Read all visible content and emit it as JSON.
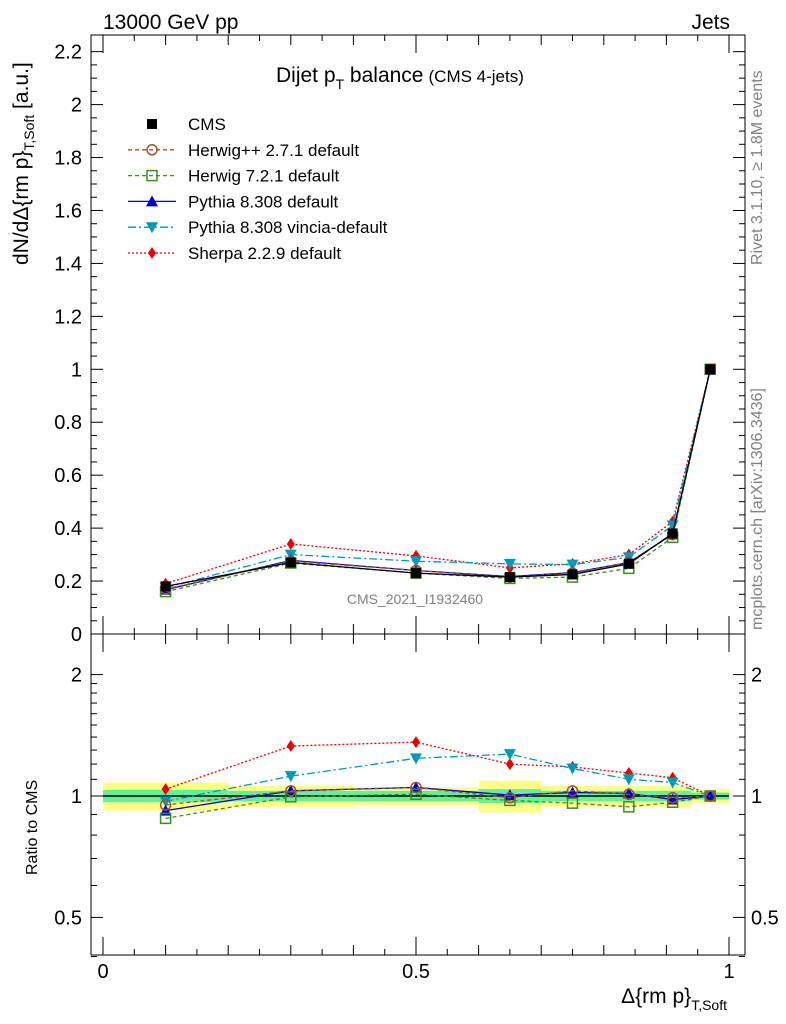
{
  "header": {
    "energy": "13000 GeV pp",
    "process": "Jets"
  },
  "side": {
    "rivet": "Rivet 3.1.10, ≥ 1.8M events",
    "mcplots": "mcplots.cern.ch [arXiv:1306.3436]"
  },
  "colors": {
    "CMS": "#000000",
    "Herwig++ 2.7.1 default": "#a0522d",
    "Herwig 7.2.1 default": "#3a8f1a",
    "Pythia 8.308 default": "#0000cc",
    "Pythia 8.308 vincia-default": "#0099bb",
    "Sherpa 2.2.9 default": "#ee0000",
    "band_inner": "#66ee99",
    "band_outer": "#ffff88"
  },
  "chart_data": [
    {
      "type": "line",
      "title": "Dijet p_T balance",
      "title_main": "Dijet p",
      "title_sub": "T",
      "title_rest": " balance",
      "title_note": "(CMS 4-jets)",
      "ylabel": "dN/dΔ{rm p}",
      "ylabel_sub": "T,Soft",
      "ylabel_unit": " [a.u.]",
      "watermark": "CMS_2021_I1932460",
      "xlim": [
        0,
        1
      ],
      "ylim": [
        0,
        2.25
      ],
      "yticks": [
        0,
        0.2,
        0.4,
        0.6,
        0.8,
        1,
        1.2,
        1.4,
        1.6,
        1.8,
        2,
        2.2
      ],
      "ytick_labels": [
        "0",
        "0.2",
        "0.4",
        "0.6",
        "0.8",
        "1",
        "1.2",
        "1.4",
        "1.6",
        "1.8",
        "2",
        "2.2"
      ],
      "legend_position": "top-left",
      "x": [
        0.1,
        0.3,
        0.5,
        0.65,
        0.75,
        0.84,
        0.91,
        0.97
      ],
      "series": [
        {
          "name": "CMS",
          "marker": "square",
          "dash": "none",
          "values": [
            0.18,
            0.27,
            0.23,
            0.215,
            0.225,
            0.265,
            0.38,
            1.0
          ]
        },
        {
          "name": "Herwig++ 2.7.1 default",
          "marker": "circle-open",
          "dash": "4,3",
          "values": [
            0.17,
            0.275,
            0.24,
            0.215,
            0.23,
            0.27,
            0.375,
            1.0
          ]
        },
        {
          "name": "Herwig 7.2.1 default",
          "marker": "square-open",
          "dash": "4,3",
          "values": [
            0.16,
            0.268,
            0.23,
            0.21,
            0.215,
            0.248,
            0.365,
            1.0
          ]
        },
        {
          "name": "Pythia 8.308 default",
          "marker": "triangle-up",
          "dash": "none",
          "values": [
            0.167,
            0.278,
            0.24,
            0.217,
            0.232,
            0.27,
            0.377,
            1.0
          ]
        },
        {
          "name": "Pythia 8.308 vincia-default",
          "marker": "triangle-down",
          "dash": "8,3,2,3",
          "values": [
            0.175,
            0.3,
            0.275,
            0.265,
            0.262,
            0.29,
            0.41,
            1.0
          ]
        },
        {
          "name": "Sherpa 2.2.9 default",
          "marker": "diamond",
          "dash": "2,2",
          "values": [
            0.19,
            0.34,
            0.295,
            0.25,
            0.265,
            0.3,
            0.425,
            1.0
          ]
        }
      ]
    },
    {
      "type": "line",
      "ylabel": "Ratio to CMS",
      "xlabel": "Δ{rm p}",
      "xlabel_sub": "T,Soft",
      "xlim": [
        0,
        1
      ],
      "ylim": [
        0.35,
        2.3
      ],
      "log_y": true,
      "yticks": [
        0.5,
        1,
        2
      ],
      "ytick_labels": [
        "0.5",
        "1",
        "2"
      ],
      "xticks": [
        0,
        0.5,
        1
      ],
      "xtick_labels": [
        "0",
        "0.5",
        "1"
      ],
      "x": [
        0.1,
        0.3,
        0.5,
        0.65,
        0.75,
        0.84,
        0.91,
        0.97
      ],
      "band_edges": [
        0,
        0.2,
        0.4,
        0.6,
        0.7,
        0.8,
        0.88,
        0.94,
        1.0
      ],
      "band_inner": [
        0.035,
        0.03,
        0.03,
        0.04,
        0.03,
        0.03,
        0.03,
        0.02
      ],
      "band_outer": [
        0.08,
        0.06,
        0.05,
        0.09,
        0.06,
        0.06,
        0.06,
        0.04
      ],
      "series": [
        {
          "name": "Herwig++ 2.7.1 default",
          "marker": "circle-open",
          "dash": "4,3",
          "values": [
            0.95,
            1.03,
            1.05,
            0.99,
            1.03,
            1.01,
            0.99,
            1.0
          ]
        },
        {
          "name": "Herwig 7.2.1 default",
          "marker": "square-open",
          "dash": "4,3",
          "values": [
            0.88,
            0.995,
            1.01,
            0.975,
            0.96,
            0.94,
            0.965,
            1.0
          ]
        },
        {
          "name": "Pythia 8.308 default",
          "marker": "triangle-up",
          "dash": "none",
          "values": [
            0.92,
            1.03,
            1.05,
            1.005,
            1.02,
            1.015,
            0.98,
            1.0
          ]
        },
        {
          "name": "Pythia 8.308 vincia-default",
          "marker": "triangle-down",
          "dash": "8,3,2,3",
          "values": [
            0.97,
            1.12,
            1.24,
            1.27,
            1.17,
            1.1,
            1.08,
            1.0
          ]
        },
        {
          "name": "Sherpa 2.2.9 default",
          "marker": "diamond",
          "dash": "2,2",
          "values": [
            1.04,
            1.33,
            1.36,
            1.2,
            1.18,
            1.14,
            1.11,
            1.0
          ]
        }
      ]
    }
  ]
}
